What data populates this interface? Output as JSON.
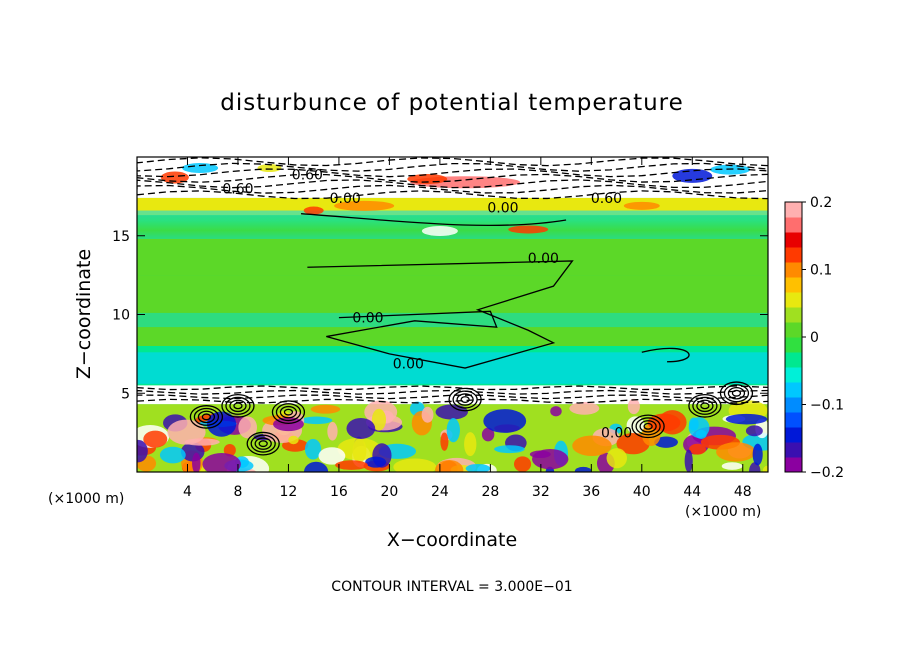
{
  "chart_data": {
    "type": "heatmap",
    "title": "disturbunce of potential temperature",
    "xlabel": "X−coordinate",
    "ylabel": "Z−coordinate",
    "x_unit_label": "(×1000 m)",
    "z_unit_label": "(×1000 m)",
    "xlim": [
      0,
      50
    ],
    "ylim": [
      0,
      20
    ],
    "x_ticks": [
      4,
      8,
      12,
      16,
      20,
      24,
      28,
      32,
      36,
      40,
      44,
      48
    ],
    "x_tick_labels": [
      "4",
      "8",
      "12",
      "16",
      "20",
      "24",
      "28",
      "32",
      "36",
      "40",
      "44",
      "48"
    ],
    "y_ticks": [
      5,
      10,
      15
    ],
    "y_tick_labels": [
      "5",
      "10",
      "15"
    ],
    "colorbar": {
      "range": [
        -0.2,
        0.2
      ],
      "tick_values": [
        0.2,
        0.1,
        0,
        -0.1,
        -0.2
      ],
      "tick_labels": [
        "0.2",
        "0.1",
        "0",
        "−0.1",
        "−0.2"
      ],
      "colors": [
        "#8b00a0",
        "#3a0fb0",
        "#0018d8",
        "#0050ff",
        "#008cff",
        "#00c8ff",
        "#00f0d8",
        "#00e890",
        "#30e040",
        "#5cd828",
        "#a0e020",
        "#e8e810",
        "#ffc000",
        "#ff8a00",
        "#ff3a00",
        "#e80000",
        "#ff6e6e",
        "#ffb0b0"
      ]
    },
    "contour_interval_text": "CONTOUR INTERVAL = 3.000E−01",
    "contour_labels": [
      {
        "text": "0.60",
        "x": 13.5,
        "z": 18.9
      },
      {
        "text": "0.60",
        "x": 8.0,
        "z": 18.0
      },
      {
        "text": "0.00",
        "x": 16.5,
        "z": 17.4
      },
      {
        "text": "0.00",
        "x": 29.0,
        "z": 16.8
      },
      {
        "text": "0.60",
        "x": 37.2,
        "z": 17.4
      },
      {
        "text": "0.00",
        "x": 32.2,
        "z": 13.6
      },
      {
        "text": "0.00",
        "x": 18.3,
        "z": 9.8
      },
      {
        "text": "0.00",
        "x": 21.5,
        "z": 6.9
      },
      {
        "text": "0.00",
        "x": 38.0,
        "z": 2.5
      }
    ],
    "bands": [
      {
        "z": [
          17.4,
          20.0
        ],
        "value": -0.015,
        "note": "upper stable layer, dashed contours"
      },
      {
        "z": [
          16.3,
          17.4
        ],
        "value": 0.06
      },
      {
        "z": [
          12.5,
          16.3
        ],
        "value": 0.02
      },
      {
        "z": [
          8.0,
          12.5
        ],
        "value": 0.015
      },
      {
        "z": [
          5.5,
          8.0
        ],
        "value": -0.03
      },
      {
        "z": [
          4.3,
          5.5
        ],
        "value": -0.01,
        "note": "lower stable layer, dashed contours"
      },
      {
        "z": [
          0.0,
          4.3
        ],
        "value": 0.03,
        "note": "turbulent boundary layer"
      }
    ]
  }
}
